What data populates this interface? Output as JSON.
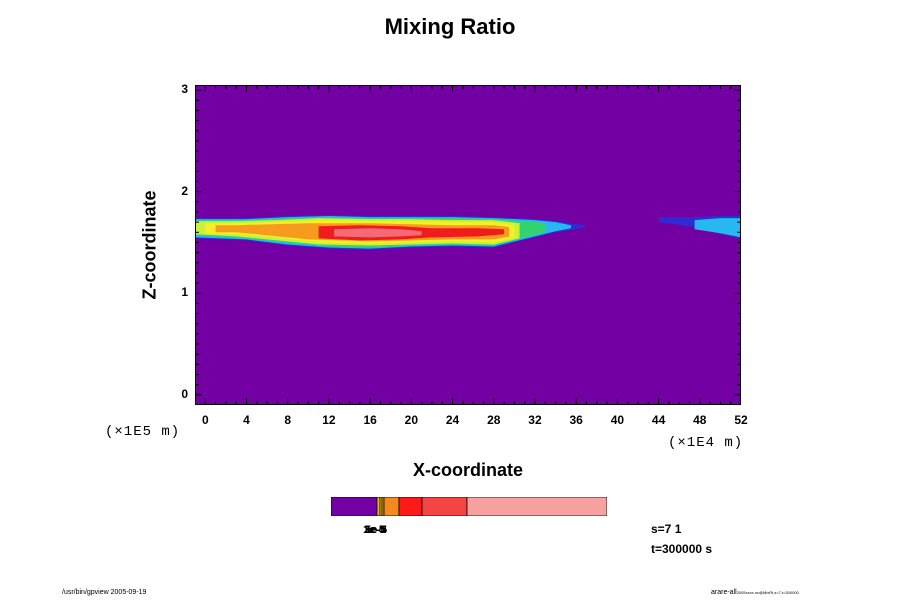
{
  "chart_data": {
    "type": "heatmap",
    "title": "Mixing Ratio",
    "xlabel": "X-coordinate",
    "ylabel": "Z-coordinate",
    "x_scale_note": "(×1E4 m)",
    "y_scale_note": "(×1E5 m)",
    "xlim": [
      -1,
      52
    ],
    "ylim": [
      -0.1,
      3.05
    ],
    "xticks": [
      0,
      4,
      8,
      12,
      16,
      20,
      24,
      28,
      32,
      36,
      40,
      44,
      48,
      52
    ],
    "yticks": [
      0,
      1,
      2,
      3
    ],
    "background_color": "#7300A2",
    "plume_layers": [
      {
        "level": 1,
        "color": "#2E2BD4",
        "band": [
          [
            -1,
            1.54,
            1.74
          ],
          [
            4,
            1.52,
            1.74
          ],
          [
            8,
            1.47,
            1.76
          ],
          [
            12,
            1.44,
            1.77
          ],
          [
            16,
            1.43,
            1.76
          ],
          [
            20,
            1.45,
            1.76
          ],
          [
            24,
            1.46,
            1.76
          ],
          [
            28,
            1.45,
            1.75
          ],
          [
            32,
            1.55,
            1.73
          ],
          [
            34,
            1.6,
            1.71
          ],
          [
            36,
            1.63,
            1.68
          ],
          [
            37,
            1.66,
            1.67
          ]
        ]
      },
      {
        "level": 1,
        "color": "#2E2BD4",
        "band": [
          [
            44,
            1.7,
            1.75
          ],
          [
            47,
            1.66,
            1.75
          ],
          [
            50,
            1.58,
            1.76
          ],
          [
            52,
            1.54,
            1.76
          ]
        ]
      },
      {
        "level": 2,
        "color": "#26B8F0",
        "band": [
          [
            -1,
            1.55,
            1.73
          ],
          [
            4,
            1.53,
            1.73
          ],
          [
            8,
            1.48,
            1.75
          ],
          [
            12,
            1.45,
            1.76
          ],
          [
            16,
            1.44,
            1.75
          ],
          [
            20,
            1.46,
            1.75
          ],
          [
            24,
            1.47,
            1.75
          ],
          [
            28,
            1.46,
            1.74
          ],
          [
            32,
            1.56,
            1.72
          ],
          [
            34,
            1.61,
            1.7
          ],
          [
            35.5,
            1.64,
            1.67
          ]
        ]
      },
      {
        "level": 2,
        "color": "#26B8F0",
        "band": [
          [
            47.5,
            1.63,
            1.72
          ],
          [
            50,
            1.59,
            1.74
          ],
          [
            52,
            1.55,
            1.74
          ]
        ]
      },
      {
        "level": 3,
        "color": "#33D470",
        "band": [
          [
            -1,
            1.57,
            1.72
          ],
          [
            4,
            1.54,
            1.72
          ],
          [
            8,
            1.5,
            1.74
          ],
          [
            12,
            1.46,
            1.75
          ],
          [
            16,
            1.45,
            1.74
          ],
          [
            20,
            1.47,
            1.74
          ],
          [
            24,
            1.48,
            1.74
          ],
          [
            28,
            1.47,
            1.73
          ],
          [
            31,
            1.55,
            1.71
          ],
          [
            33,
            1.6,
            1.69
          ]
        ]
      },
      {
        "level": 4,
        "color": "#C8F23A",
        "band": [
          [
            -1,
            1.58,
            1.71
          ],
          [
            3,
            1.56,
            1.71
          ],
          [
            7,
            1.52,
            1.72
          ],
          [
            11,
            1.48,
            1.74
          ],
          [
            16,
            1.47,
            1.73
          ],
          [
            20,
            1.48,
            1.73
          ],
          [
            24,
            1.49,
            1.72
          ],
          [
            28,
            1.48,
            1.72
          ],
          [
            30.5,
            1.54,
            1.69
          ]
        ]
      },
      {
        "level": 5,
        "color": "#F7EF26",
        "band": [
          [
            0,
            1.59,
            1.69
          ],
          [
            3,
            1.58,
            1.69
          ],
          [
            7,
            1.55,
            1.7
          ],
          [
            11,
            1.5,
            1.72
          ],
          [
            16,
            1.49,
            1.71
          ],
          [
            20,
            1.5,
            1.71
          ],
          [
            24,
            1.51,
            1.7
          ],
          [
            28,
            1.5,
            1.7
          ],
          [
            30,
            1.55,
            1.67
          ]
        ]
      },
      {
        "level": 6,
        "color": "#F79B1E",
        "band": [
          [
            1,
            1.6,
            1.67
          ],
          [
            3,
            1.6,
            1.67
          ],
          [
            10,
            1.53,
            1.69
          ],
          [
            16,
            1.51,
            1.69
          ],
          [
            20,
            1.52,
            1.68
          ],
          [
            24,
            1.53,
            1.67
          ],
          [
            28,
            1.53,
            1.67
          ],
          [
            29.5,
            1.56,
            1.65
          ]
        ]
      },
      {
        "level": 7,
        "color": "#EE1C1C",
        "band": [
          [
            11,
            1.54,
            1.66
          ],
          [
            15,
            1.52,
            1.67
          ],
          [
            19,
            1.53,
            1.66
          ],
          [
            22,
            1.55,
            1.64
          ],
          [
            26.5,
            1.56,
            1.64
          ],
          [
            29,
            1.58,
            1.63
          ]
        ]
      },
      {
        "level": 8,
        "color": "#F56A78",
        "band": [
          [
            12.5,
            1.56,
            1.63
          ],
          [
            16,
            1.55,
            1.64
          ],
          [
            19,
            1.56,
            1.63
          ],
          [
            21,
            1.57,
            1.61
          ]
        ]
      }
    ],
    "colorbar": {
      "segments": [
        {
          "color": "#7300A2",
          "width": 46
        },
        {
          "color": "#F2B21A",
          "width": 3
        },
        {
          "color": "#F7D21A",
          "width": 2
        },
        {
          "color": "#EE9A1A",
          "width": 2
        },
        {
          "color": "#F58A1C",
          "width": 15
        },
        {
          "color": "#FF1A1A",
          "width": 23
        },
        {
          "color": "#F54444",
          "width": 45
        },
        {
          "color": "#F7A0A0",
          "width": 140
        }
      ],
      "labels": [
        "1e-5",
        "2e-5",
        "5e-5",
        "1e-4"
      ]
    }
  },
  "info": {
    "step": "s=7 1",
    "time": "t=300000 s"
  },
  "footer": {
    "left": "/usr/bin/gpview 2005-09-19",
    "right": "arare-all",
    "right_sub": "2005xxxx.nc@MixRt,s=7,t=300000"
  }
}
